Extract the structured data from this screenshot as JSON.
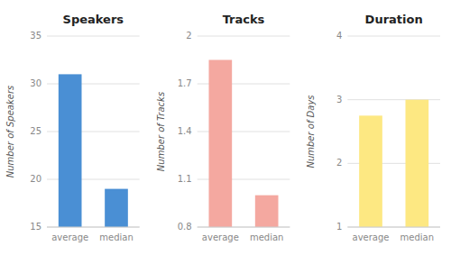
{
  "chart_data": [
    {
      "type": "bar",
      "title": "Speakers",
      "ylabel": "Number of Speakers",
      "categories": [
        "average",
        "median"
      ],
      "values": [
        31,
        19
      ],
      "color": "#4a8fd4",
      "ylim": [
        15,
        35
      ],
      "yticks": [
        15,
        20,
        25,
        30,
        35
      ],
      "grid": true
    },
    {
      "type": "bar",
      "title": "Tracks",
      "ylabel": "Number of Tracks",
      "categories": [
        "average",
        "median"
      ],
      "values": [
        1.85,
        1.0
      ],
      "color": "#f4a8a0",
      "ylim": [
        0.8,
        2.0
      ],
      "yticks": [
        0.8,
        1.1,
        1.4,
        1.7,
        2.0
      ],
      "grid": true
    },
    {
      "type": "bar",
      "title": "Duration",
      "ylabel": "Number of Days",
      "categories": [
        "average",
        "median"
      ],
      "values": [
        2.75,
        3.0
      ],
      "color": "#fde882",
      "ylim": [
        1,
        4
      ],
      "yticks": [
        1,
        2,
        3,
        4
      ],
      "grid": true
    }
  ]
}
